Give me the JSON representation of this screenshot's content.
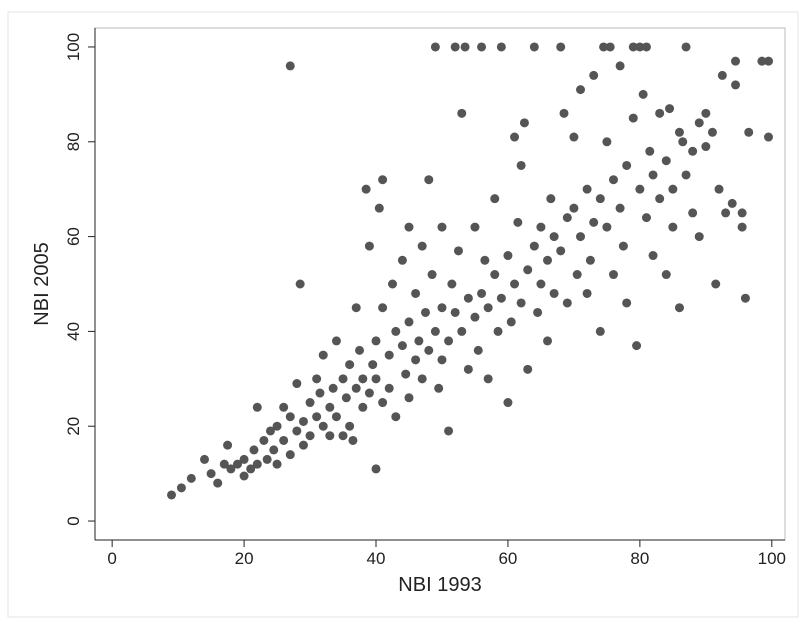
{
  "chart_data": {
    "type": "scatter",
    "xlabel": "NBI 1993",
    "ylabel": "NBI 2005",
    "color": "#555555",
    "xlim": [
      -2.6,
      102
    ],
    "ylim": [
      -4,
      104
    ],
    "xticks": [
      0,
      20,
      40,
      60,
      80,
      100
    ],
    "yticks": [
      0,
      20,
      40,
      60,
      80,
      100
    ],
    "x": [
      9,
      10.5,
      12,
      14,
      15,
      16,
      17,
      17.5,
      18,
      19,
      20,
      20,
      21,
      21.5,
      22,
      22,
      23,
      23.5,
      24,
      24.5,
      25,
      25,
      26,
      26,
      27,
      27,
      27,
      28,
      28,
      28.5,
      29,
      29,
      30,
      30,
      31,
      31,
      31.5,
      32,
      32,
      33,
      33,
      33.5,
      34,
      34,
      35,
      35,
      35.5,
      36,
      36,
      36.5,
      37,
      37,
      37.5,
      38,
      38,
      38.5,
      39,
      39,
      39.5,
      40,
      40,
      40,
      40.5,
      41,
      41,
      41,
      42,
      42,
      42.5,
      43,
      43,
      44,
      44,
      44.5,
      45,
      45,
      45,
      46,
      46,
      46.5,
      47,
      47,
      47.5,
      48,
      48,
      48.5,
      49,
      49,
      49.5,
      50,
      50,
      50,
      51,
      51,
      51.5,
      52,
      52,
      52.5,
      53,
      53,
      53.5,
      54,
      54,
      55,
      55,
      55.5,
      56,
      56,
      56.5,
      57,
      57,
      58,
      58,
      58.5,
      59,
      59,
      60,
      60,
      60.5,
      61,
      61,
      61.5,
      62,
      62,
      62.5,
      63,
      63,
      64,
      64,
      64.5,
      65,
      65,
      66,
      66,
      66.5,
      67,
      67,
      68,
      68,
      68.5,
      69,
      69,
      70,
      70,
      70.5,
      71,
      71,
      72,
      72,
      72.5,
      73,
      73,
      74,
      74,
      74.5,
      75,
      75,
      75.5,
      76,
      76,
      77,
      77,
      77.5,
      78,
      78,
      79,
      79,
      79.5,
      80,
      80,
      80.5,
      81,
      81,
      81.5,
      82,
      82,
      83,
      83,
      84,
      84,
      84.5,
      85,
      85,
      86,
      86,
      86.5,
      87,
      87,
      88,
      88,
      89,
      89,
      90,
      90,
      91,
      91.5,
      92,
      92.5,
      93,
      94,
      94.5,
      94.5,
      95.5,
      95.5,
      96,
      96.5,
      98.5,
      99.5,
      99.5
    ],
    "y": [
      5.5,
      7,
      9,
      13,
      10,
      8,
      12,
      16,
      11,
      12,
      9.5,
      13,
      11,
      15,
      24,
      12,
      17,
      13,
      19,
      15,
      20,
      12,
      17,
      24,
      14,
      22,
      96,
      19,
      29,
      50,
      21,
      16,
      25,
      18,
      22,
      30,
      27,
      20,
      35,
      24,
      18,
      28,
      22,
      38,
      30,
      18,
      26,
      33,
      20,
      17,
      28,
      45,
      36,
      24,
      30,
      70,
      27,
      58,
      33,
      11,
      38,
      30,
      66,
      25,
      45,
      72,
      35,
      28,
      50,
      40,
      22,
      37,
      55,
      31,
      42,
      26,
      62,
      34,
      48,
      38,
      30,
      58,
      44,
      36,
      72,
      52,
      40,
      100,
      28,
      45,
      34,
      62,
      38,
      19,
      50,
      44,
      100,
      57,
      40,
      86,
      100,
      47,
      32,
      43,
      62,
      36,
      48,
      100,
      55,
      45,
      30,
      52,
      68,
      40,
      47,
      100,
      56,
      25,
      42,
      50,
      81,
      63,
      46,
      75,
      84,
      53,
      32,
      58,
      100,
      44,
      62,
      50,
      55,
      38,
      68,
      60,
      48,
      100,
      57,
      86,
      64,
      46,
      66,
      81,
      52,
      60,
      91,
      70,
      48,
      55,
      63,
      94,
      68,
      40,
      100,
      62,
      80,
      100,
      72,
      52,
      66,
      96,
      58,
      75,
      46,
      100,
      85,
      37,
      70,
      100,
      90,
      64,
      100,
      78,
      73,
      56,
      86,
      68,
      76,
      52,
      87,
      70,
      62,
      82,
      45,
      80,
      100,
      73,
      78,
      65,
      84,
      60,
      79,
      86,
      82,
      50,
      70,
      94,
      65,
      67,
      92,
      97,
      62,
      65,
      47,
      82,
      97,
      97,
      81
    ]
  }
}
